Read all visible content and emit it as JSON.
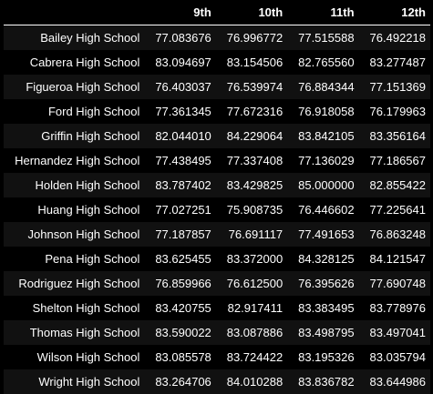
{
  "table": {
    "columns": [
      "9th",
      "10th",
      "11th",
      "12th"
    ],
    "rows": [
      {
        "school": "Bailey High School",
        "values": [
          "77.083676",
          "76.996772",
          "77.515588",
          "76.492218"
        ]
      },
      {
        "school": "Cabrera High School",
        "values": [
          "83.094697",
          "83.154506",
          "82.765560",
          "83.277487"
        ]
      },
      {
        "school": "Figueroa High School",
        "values": [
          "76.403037",
          "76.539974",
          "76.884344",
          "77.151369"
        ]
      },
      {
        "school": "Ford High School",
        "values": [
          "77.361345",
          "77.672316",
          "76.918058",
          "76.179963"
        ]
      },
      {
        "school": "Griffin High School",
        "values": [
          "82.044010",
          "84.229064",
          "83.842105",
          "83.356164"
        ]
      },
      {
        "school": "Hernandez High School",
        "values": [
          "77.438495",
          "77.337408",
          "77.136029",
          "77.186567"
        ]
      },
      {
        "school": "Holden High School",
        "values": [
          "83.787402",
          "83.429825",
          "85.000000",
          "82.855422"
        ]
      },
      {
        "school": "Huang High School",
        "values": [
          "77.027251",
          "75.908735",
          "76.446602",
          "77.225641"
        ]
      },
      {
        "school": "Johnson High School",
        "values": [
          "77.187857",
          "76.691117",
          "77.491653",
          "76.863248"
        ]
      },
      {
        "school": "Pena High School",
        "values": [
          "83.625455",
          "83.372000",
          "84.328125",
          "84.121547"
        ]
      },
      {
        "school": "Rodriguez High School",
        "values": [
          "76.859966",
          "76.612500",
          "76.395626",
          "77.690748"
        ]
      },
      {
        "school": "Shelton High School",
        "values": [
          "83.420755",
          "82.917411",
          "83.383495",
          "83.778976"
        ]
      },
      {
        "school": "Thomas High School",
        "values": [
          "83.590022",
          "83.087886",
          "83.498795",
          "83.497041"
        ]
      },
      {
        "school": "Wilson High School",
        "values": [
          "83.085578",
          "83.724422",
          "83.195326",
          "83.035794"
        ]
      },
      {
        "school": "Wright High School",
        "values": [
          "83.264706",
          "84.010288",
          "83.836782",
          "83.644986"
        ]
      }
    ]
  }
}
